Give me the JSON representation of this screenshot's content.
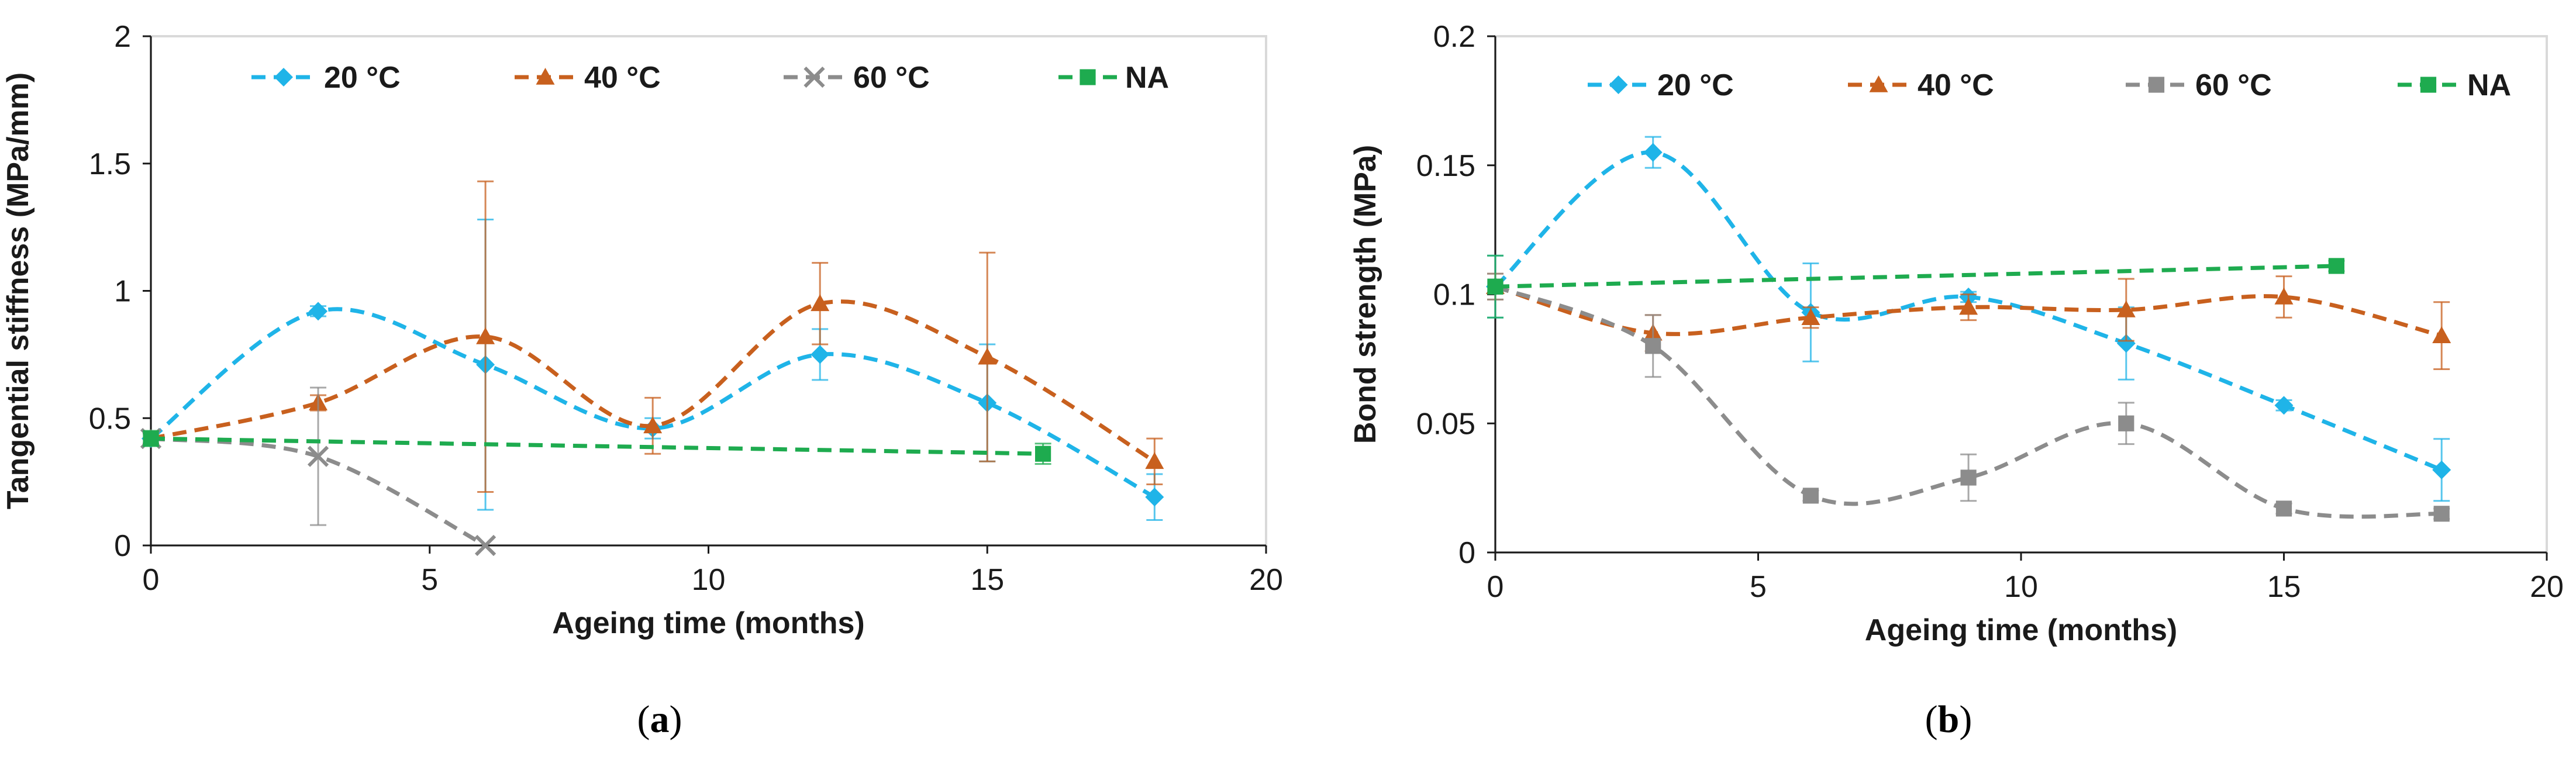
{
  "chart_data": [
    {
      "type": "line",
      "panel_label": "a",
      "title": "",
      "xlabel": "Ageing time (months)",
      "ylabel": "Tangential stiffness (MPa/mm)",
      "xlim": [
        0,
        20
      ],
      "ylim": [
        0,
        2
      ],
      "xticks": [
        0,
        5,
        10,
        15,
        20
      ],
      "yticks": [
        0,
        0.5,
        1,
        1.5,
        2
      ],
      "xtick_labels": [
        "0",
        "5",
        "10",
        "15",
        "20"
      ],
      "ytick_labels": [
        "0",
        "0.5",
        "1",
        "1.5",
        "2"
      ],
      "grid": false,
      "legend_position": "top",
      "series": [
        {
          "name": "20 °C",
          "color": "#1fb4e8",
          "marker": "diamond",
          "x": [
            0,
            3,
            6,
            9,
            12,
            15,
            18
          ],
          "y": [
            0.42,
            0.92,
            0.71,
            0.46,
            0.75,
            0.56,
            0.19
          ],
          "err": [
            0.02,
            0.02,
            0.57,
            0.04,
            0.1,
            0.23,
            0.09
          ]
        },
        {
          "name": "40 °C",
          "color": "#c8601e",
          "marker": "triangle",
          "x": [
            0,
            3,
            6,
            9,
            12,
            15,
            18
          ],
          "y": [
            0.42,
            0.56,
            0.82,
            0.47,
            0.95,
            0.74,
            0.33
          ],
          "err": [
            0.02,
            0.03,
            0.61,
            0.11,
            0.16,
            0.41,
            0.09
          ]
        },
        {
          "name": "60 °C",
          "color": "#8c8c8c",
          "marker": "x",
          "x": [
            0,
            3,
            6
          ],
          "y": [
            0.42,
            0.35,
            0.0
          ],
          "err": [
            0.02,
            0.27,
            0.0
          ]
        },
        {
          "name": "NA",
          "color": "#1eab4f",
          "marker": "square",
          "line": "straight",
          "x": [
            0,
            16
          ],
          "y": [
            0.42,
            0.36
          ],
          "err": [
            0.03,
            0.04
          ]
        }
      ]
    },
    {
      "type": "line",
      "panel_label": "b",
      "title": "",
      "xlabel": "Ageing time (months)",
      "ylabel": "Bond strength (MPa)",
      "xlim": [
        0,
        20
      ],
      "ylim": [
        0,
        0.2
      ],
      "xticks": [
        0,
        5,
        10,
        15,
        20
      ],
      "yticks": [
        0,
        0.05,
        0.1,
        0.15,
        0.2
      ],
      "xtick_labels": [
        "0",
        "5",
        "10",
        "15",
        "20"
      ],
      "ytick_labels": [
        "0",
        "0.05",
        "0.1",
        "0.15",
        "0.2"
      ],
      "grid": false,
      "legend_position": "top",
      "series": [
        {
          "name": "20 °C",
          "color": "#1fb4e8",
          "marker": "diamond",
          "x": [
            0,
            3,
            6,
            9,
            12,
            15,
            18
          ],
          "y": [
            0.103,
            0.155,
            0.093,
            0.099,
            0.081,
            0.057,
            0.032
          ],
          "err": [
            0.012,
            0.006,
            0.019,
            0.002,
            0.014,
            0.002,
            0.012
          ]
        },
        {
          "name": "40 °C",
          "color": "#c8601e",
          "marker": "triangle",
          "x": [
            0,
            3,
            6,
            9,
            12,
            15,
            18
          ],
          "y": [
            0.103,
            0.085,
            0.091,
            0.095,
            0.094,
            0.099,
            0.084
          ],
          "err": [
            0.005,
            0.007,
            0.004,
            0.005,
            0.012,
            0.008,
            0.013
          ]
        },
        {
          "name": "60 °C",
          "color": "#8c8c8c",
          "marker": "square",
          "x": [
            0,
            3,
            6,
            9,
            12,
            15,
            18
          ],
          "y": [
            0.103,
            0.08,
            0.022,
            0.029,
            0.05,
            0.017,
            0.015
          ],
          "err": [
            0.005,
            0.012,
            0.002,
            0.009,
            0.008,
            0.002,
            0.002
          ]
        },
        {
          "name": "NA",
          "color": "#1eab4f",
          "marker": "square",
          "line": "straight",
          "x": [
            0,
            16
          ],
          "y": [
            0.103,
            0.111
          ],
          "err": [
            0.012,
            0.002
          ]
        }
      ]
    }
  ]
}
